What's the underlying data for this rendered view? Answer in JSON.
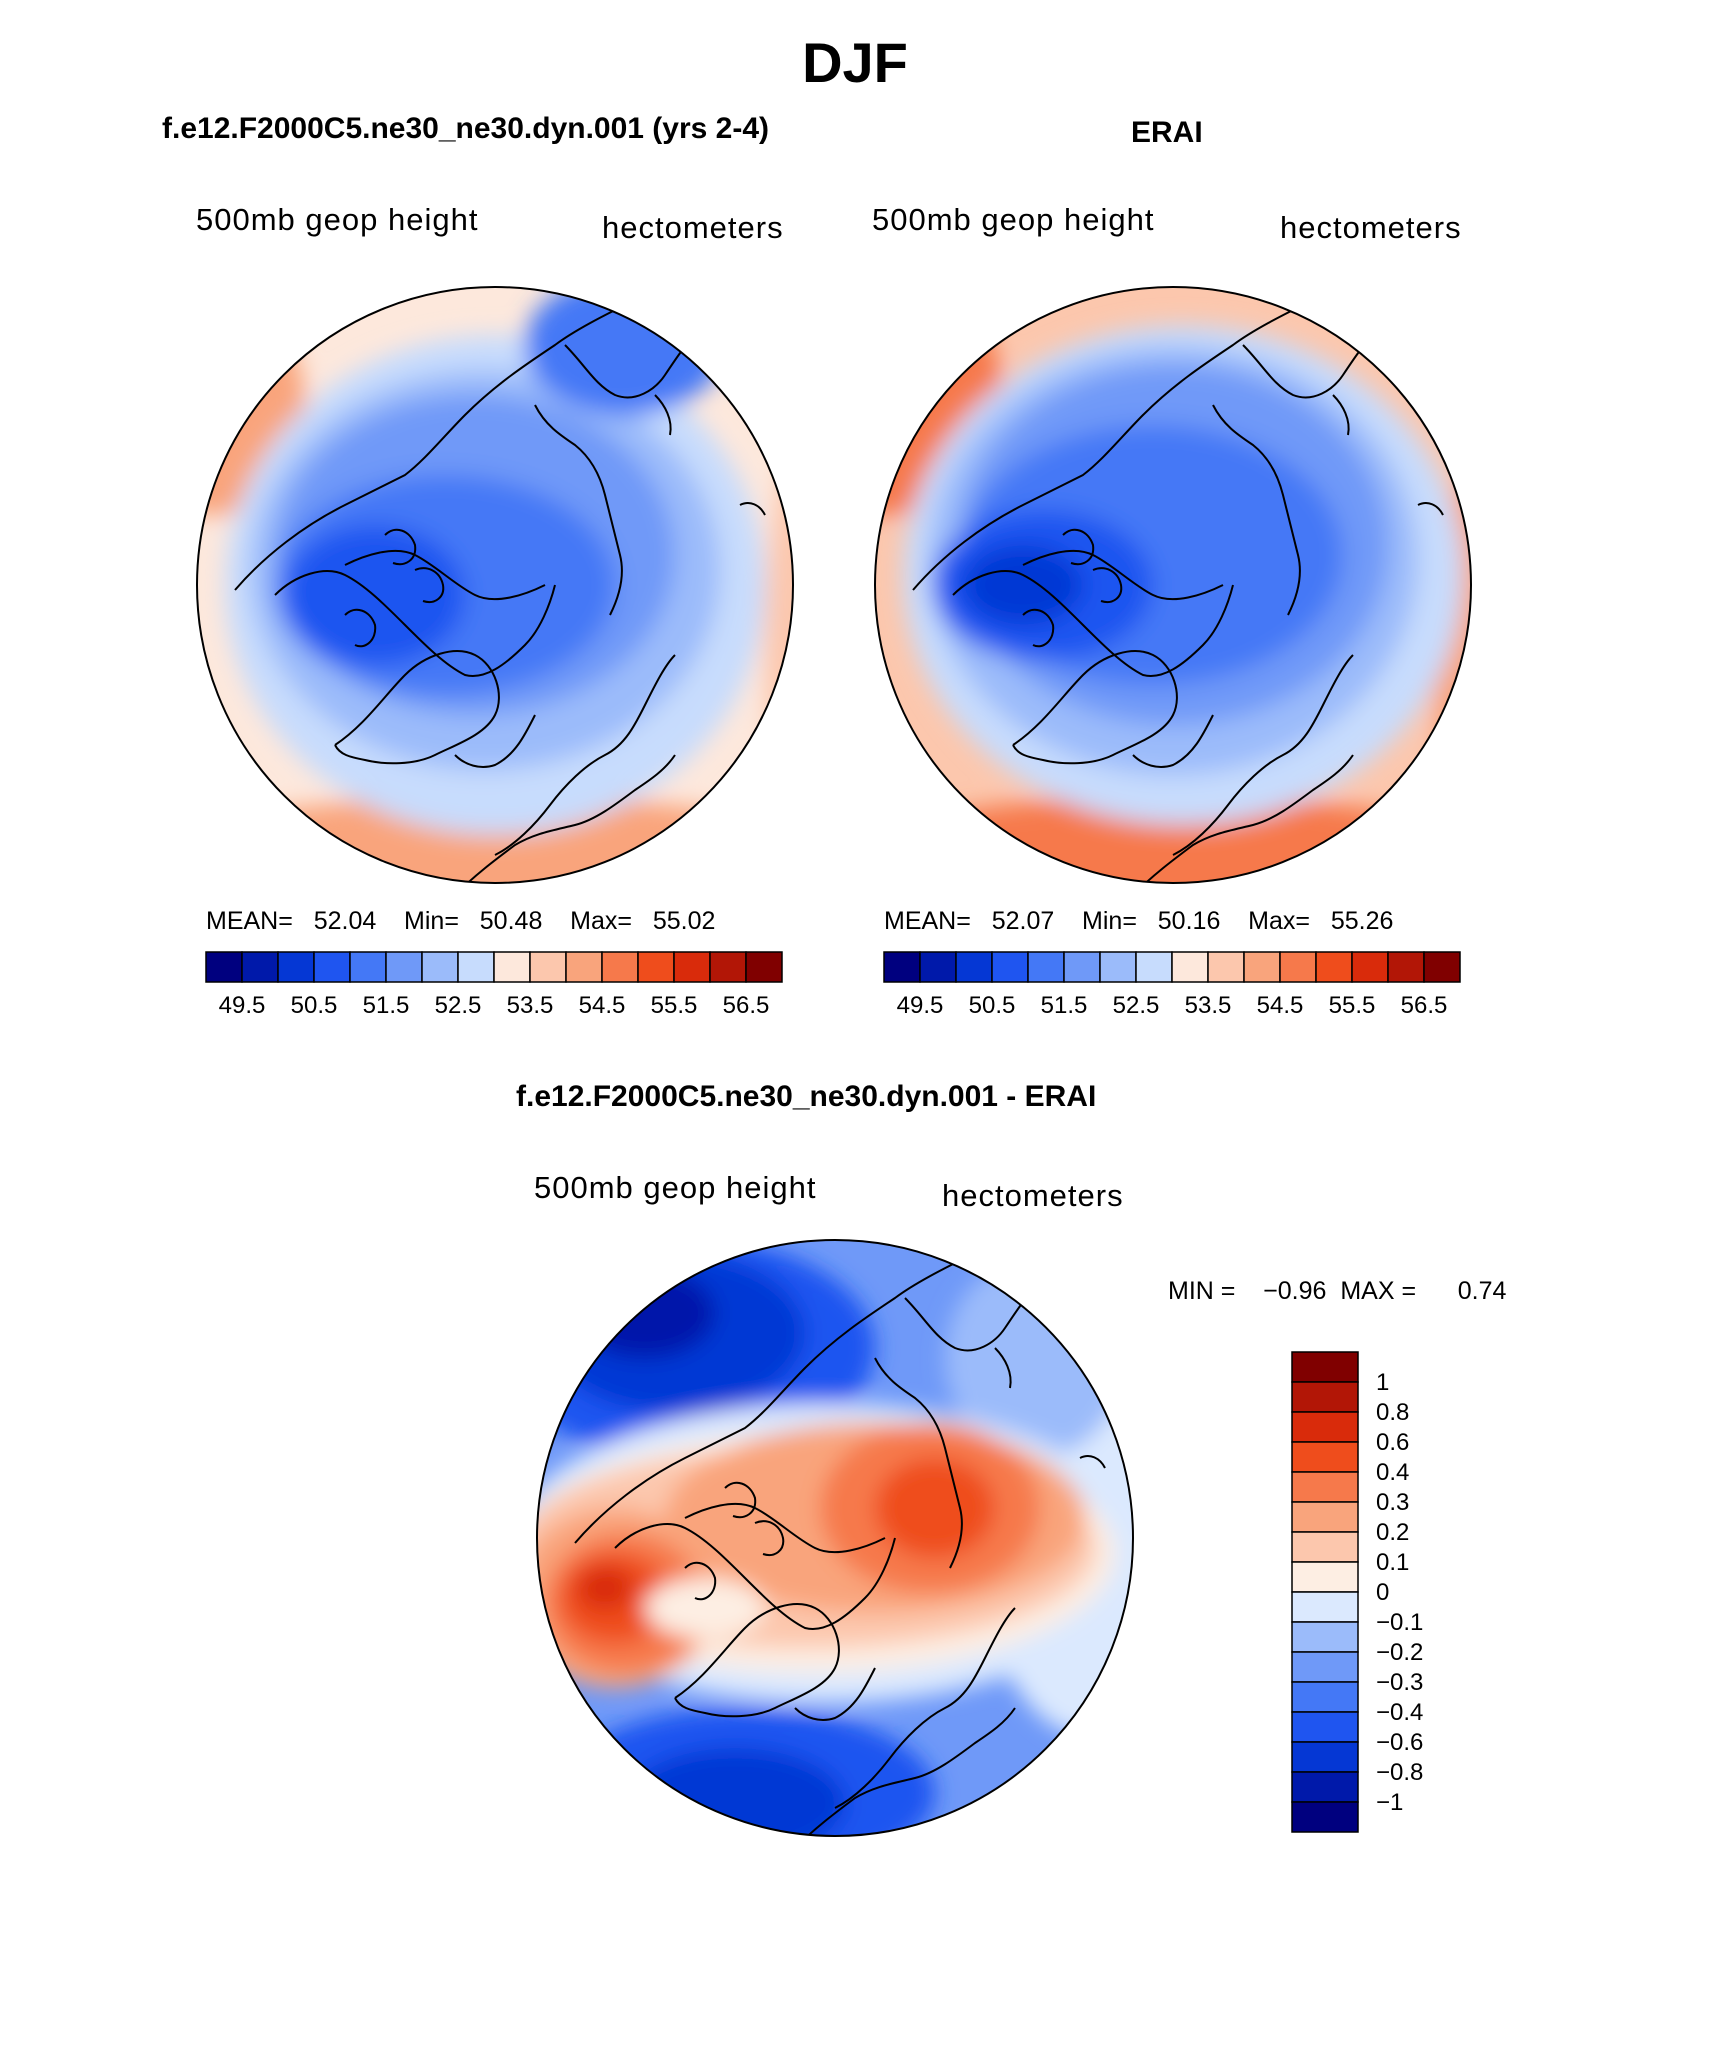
{
  "figure": {
    "title": "DJF"
  },
  "palette": {
    "full": [
      "#00007f",
      "#0019aa",
      "#0537d4",
      "#1f55f0",
      "#4478f6",
      "#6f99f8",
      "#9bbbfa",
      "#c7dcfd",
      "#fde8dc",
      "#fcc7ad",
      "#f9a47c",
      "#f6794b",
      "#ef4d1c",
      "#d92b0b",
      "#b21606",
      "#800000"
    ],
    "diff": [
      "#00007f",
      "#0019aa",
      "#0537d4",
      "#1f55f0",
      "#4478f6",
      "#6f99f8",
      "#9bbbfa",
      "#dbe9fe",
      "#fdeee3",
      "#fcc7ad",
      "#f9a47c",
      "#f6794b",
      "#ef4d1c",
      "#d92b0b",
      "#b21606",
      "#800000"
    ],
    "coast": "#000000"
  },
  "panels": [
    {
      "id": "model",
      "title": "f.e12.F2000C5.ne30_ne30.dyn.001 (yrs 2-4)",
      "left_label": "500mb geop height",
      "right_label": "hectometers",
      "stats": {
        "mean_label": "MEAN=",
        "mean": "52.04",
        "min_label": "Min=",
        "min": "50.48",
        "max_label": "Max=",
        "max": "55.02"
      },
      "colorbar": {
        "ticks": [
          "49.5",
          "50.5",
          "51.5",
          "52.5",
          "53.5",
          "54.5",
          "55.5",
          "56.5"
        ]
      }
    },
    {
      "id": "erai",
      "title": "ERAI",
      "left_label": "500mb geop height",
      "right_label": "hectometers",
      "stats": {
        "mean_label": "MEAN=",
        "mean": "52.07",
        "min_label": "Min=",
        "min": "50.16",
        "max_label": "Max=",
        "max": "55.26"
      },
      "colorbar": {
        "ticks": [
          "49.5",
          "50.5",
          "51.5",
          "52.5",
          "53.5",
          "54.5",
          "55.5",
          "56.5"
        ]
      }
    },
    {
      "id": "diff",
      "title": "f.e12.F2000C5.ne30_ne30.dyn.001 - ERAI",
      "left_label": "500mb geop height",
      "right_label": "hectometers",
      "minmax": {
        "min_label": "MIN =",
        "min": "−0.96",
        "max_label": "MAX =",
        "max": "0.74"
      },
      "colorbar": {
        "ticks": [
          "1",
          "0.8",
          "0.6",
          "0.4",
          "0.3",
          "0.2",
          "0.1",
          "0",
          "−0.1",
          "−0.2",
          "−0.3",
          "−0.4",
          "−0.6",
          "−0.8",
          "−1"
        ]
      }
    }
  ]
}
